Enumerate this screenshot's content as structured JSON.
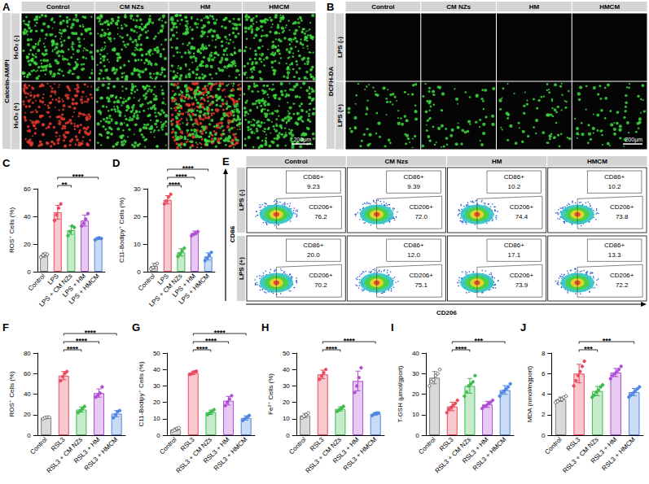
{
  "figure": {
    "A": {
      "letter": "A",
      "stain": "Calcein-AM/PI",
      "columns": [
        "Control",
        "CM NZs",
        "HM",
        "HMCM"
      ],
      "rows": [
        "H₂O₂ (-)",
        "H₂O₂ (+)"
      ],
      "scale_bar": "200μm",
      "tiles": [
        [
          [
            "#3ddc3d"
          ],
          [
            "#3ddc3d"
          ],
          [
            "#3ddc3d"
          ],
          [
            "#3ddc3d"
          ]
        ],
        [
          [
            "#e8392e"
          ],
          [
            "#3ddc3d"
          ],
          [
            "#e8392e",
            "#3ddc3d"
          ],
          [
            "#3ddc3d"
          ]
        ]
      ]
    },
    "B": {
      "letter": "B",
      "stain": "DCFH-DA",
      "columns": [
        "Control",
        "CM NZs",
        "HM",
        "HMCM"
      ],
      "rows": [
        "LPS (-)",
        "LPS (+)"
      ],
      "scale_bar": "200μm",
      "tiles": [
        [
          [],
          [],
          [],
          []
        ],
        [
          [
            "#3ddc3d"
          ],
          [
            "#3ddc3d"
          ],
          [
            "#3ddc3d"
          ],
          [
            "#3ddc3d"
          ]
        ]
      ]
    },
    "E": {
      "letter": "E",
      "x_label": "CD206",
      "y_label": "CD86",
      "columns": [
        "Control",
        "CM Nzs",
        "HM",
        "HMCM"
      ],
      "rows": [
        "LPS (-)",
        "LPS (+)"
      ],
      "gate_names": [
        "CD86+",
        "CD206+"
      ],
      "gate_values": [
        [
          [
            "9.23",
            "76.2"
          ],
          [
            "9.39",
            "72.0"
          ],
          [
            "10.2",
            "74.4"
          ],
          [
            "10.2",
            "73.8"
          ]
        ],
        [
          [
            "20.0",
            "70.2"
          ],
          [
            "12.0",
            "75.1"
          ],
          [
            "17.1",
            "73.9"
          ],
          [
            "13.3",
            "72.2"
          ]
        ]
      ]
    }
  },
  "chart_data": [
    {
      "panel": "C",
      "type": "bar",
      "y_label": "ROS⁺ Cells (%)",
      "categories": [
        "Control",
        "LPS",
        "LPS + CM NZs",
        "LPS + HM",
        "LPS + HMCM"
      ],
      "values": [
        12,
        43,
        30,
        37,
        24
      ],
      "errors": [
        1.5,
        5,
        3,
        4,
        0.8
      ],
      "points": [
        [
          10.5,
          12,
          13,
          12.5
        ],
        [
          37,
          41,
          46,
          49
        ],
        [
          26,
          29,
          33,
          32
        ],
        [
          33,
          35,
          38,
          42
        ],
        [
          23,
          24,
          24.5,
          24
        ]
      ],
      "colors": [
        "#7f7f7f",
        "#e84a5f",
        "#3dbb4d",
        "#b04fd3",
        "#4f86e0"
      ],
      "ylim": [
        0,
        60
      ],
      "yticks": [
        0,
        20,
        40,
        60
      ],
      "significance": [
        {
          "from": 1,
          "to": 2,
          "label": "**"
        },
        {
          "from": 1,
          "to": 4,
          "label": "****"
        }
      ]
    },
    {
      "panel": "D",
      "type": "bar",
      "y_label": "C11-Bodipy⁺ Cells (%)",
      "categories": [
        "Control",
        "LPS",
        "LPS + CM NZs",
        "LPS + HM",
        "LPS + HMCM"
      ],
      "values": [
        2,
        26,
        7,
        14,
        5.5
      ],
      "errors": [
        1,
        1.5,
        1.3,
        0.7,
        1.3
      ],
      "points": [
        [
          1,
          1.5,
          2.5,
          3
        ],
        [
          24.5,
          25.5,
          27,
          28
        ],
        [
          5.5,
          6.5,
          7.5,
          8.5
        ],
        [
          13,
          13.5,
          14,
          14.5
        ],
        [
          4,
          5,
          6,
          7
        ]
      ],
      "colors": [
        "#7f7f7f",
        "#e84a5f",
        "#3dbb4d",
        "#b04fd3",
        "#4f86e0"
      ],
      "ylim": [
        0,
        30
      ],
      "yticks": [
        0,
        10,
        20,
        30
      ],
      "significance": [
        {
          "from": 1,
          "to": 2,
          "label": "****"
        },
        {
          "from": 1,
          "to": 3,
          "label": "****"
        },
        {
          "from": 1,
          "to": 4,
          "label": "****"
        }
      ]
    },
    {
      "panel": "F",
      "type": "bar",
      "y_label": "ROS⁺ Cells (%)",
      "categories": [
        "Control",
        "RSL3",
        "RSL3 + CM NZs",
        "RSL3 + HM",
        "RSL3 + HMCM"
      ],
      "values": [
        17,
        58,
        25,
        41,
        21
      ],
      "errors": [
        0.8,
        4,
        2.5,
        4,
        3
      ],
      "points": [
        [
          16,
          17,
          17.5,
          17.5
        ],
        [
          53,
          57,
          60,
          62
        ],
        [
          22,
          24,
          26,
          28
        ],
        [
          37,
          39,
          41,
          47
        ],
        [
          17,
          20,
          23,
          24
        ]
      ],
      "colors": [
        "#7f7f7f",
        "#e84a5f",
        "#3dbb4d",
        "#b04fd3",
        "#4f86e0"
      ],
      "ylim": [
        0,
        80
      ],
      "yticks": [
        0,
        20,
        40,
        60,
        80
      ],
      "significance": [
        {
          "from": 1,
          "to": 2,
          "label": "****"
        },
        {
          "from": 1,
          "to": 3,
          "label": "****"
        },
        {
          "from": 1,
          "to": 4,
          "label": "****"
        }
      ]
    },
    {
      "panel": "G",
      "type": "bar",
      "y_label": "C11-Bodipy⁺ Cells (%)",
      "categories": [
        "Control",
        "RSL3",
        "RSL3 + CM NZs",
        "RSL3 + HM",
        "RSL3 + HMCM"
      ],
      "values": [
        3.5,
        38,
        14,
        21,
        10.5
      ],
      "errors": [
        0.9,
        1,
        1.3,
        2.6,
        1.3
      ],
      "points": [
        [
          2.5,
          3,
          4,
          4.5
        ],
        [
          37,
          37.5,
          38.5,
          39
        ],
        [
          12.5,
          13.5,
          14.5,
          15.5
        ],
        [
          18,
          20,
          22,
          24
        ],
        [
          9,
          10,
          11,
          12
        ]
      ],
      "colors": [
        "#7f7f7f",
        "#e84a5f",
        "#3dbb4d",
        "#b04fd3",
        "#4f86e0"
      ],
      "ylim": [
        0,
        50
      ],
      "yticks": [
        0,
        10,
        20,
        30,
        40,
        50
      ],
      "significance": [
        {
          "from": 1,
          "to": 2,
          "label": "****"
        },
        {
          "from": 1,
          "to": 3,
          "label": "****"
        },
        {
          "from": 1,
          "to": 4,
          "label": "****"
        }
      ]
    },
    {
      "panel": "H",
      "type": "bar",
      "y_label": "Fe²⁺ Cells (%)",
      "categories": [
        "Control",
        "RSL3",
        "RSL3 + CM NZs",
        "RSL3 + HM",
        "RSL3 + HMCM"
      ],
      "values": [
        12,
        37,
        16,
        33,
        13
      ],
      "errors": [
        1.3,
        2.6,
        1.3,
        6,
        0.8
      ],
      "points": [
        [
          10.5,
          11.5,
          12.5,
          13.5
        ],
        [
          34,
          36,
          38,
          40
        ],
        [
          14.5,
          15.5,
          16.5,
          17.5
        ],
        [
          26,
          30,
          35,
          41
        ],
        [
          12,
          13,
          13.5,
          13.5
        ]
      ],
      "colors": [
        "#7f7f7f",
        "#e84a5f",
        "#3dbb4d",
        "#b04fd3",
        "#4f86e0"
      ],
      "ylim": [
        0,
        50
      ],
      "yticks": [
        0,
        10,
        20,
        30,
        40,
        50
      ],
      "significance": [
        {
          "from": 1,
          "to": 2,
          "label": "****"
        },
        {
          "from": 1,
          "to": 4,
          "label": "****"
        }
      ]
    },
    {
      "panel": "I",
      "type": "bar",
      "y_label": "T-GSH (μmol/gport)",
      "categories": [
        "Control",
        "RSL3",
        "RSL3 + CM NZs",
        "RSL3 + HM",
        "RSL3 + HMCM"
      ],
      "values": [
        28,
        14,
        24,
        15,
        22
      ],
      "errors": [
        3,
        2.1,
        3.6,
        1.5,
        2.1
      ],
      "points": [
        [
          24,
          26,
          27,
          29,
          30,
          32
        ],
        [
          11,
          12.5,
          13.5,
          14.5,
          15.5,
          17
        ],
        [
          19,
          21,
          24,
          25,
          26,
          29
        ],
        [
          13,
          14,
          14.5,
          15.5,
          16,
          17
        ],
        [
          19,
          20.5,
          21.5,
          22.5,
          23.5,
          25
        ]
      ],
      "colors": [
        "#7f7f7f",
        "#e84a5f",
        "#3dbb4d",
        "#b04fd3",
        "#4f86e0"
      ],
      "ylim": [
        0,
        40
      ],
      "yticks": [
        0,
        10,
        20,
        30,
        40
      ],
      "significance": [
        {
          "from": 1,
          "to": 2,
          "label": "****"
        },
        {
          "from": 1,
          "to": 4,
          "label": "***"
        }
      ]
    },
    {
      "panel": "J",
      "type": "bar",
      "y_label": "MDA (nmol/mgport)",
      "categories": [
        "Control",
        "RSL3",
        "RSL3 + CM NZs",
        "RSL3 + HM",
        "RSL3 + HMCM"
      ],
      "values": [
        3.5,
        6,
        4.3,
        6.1,
        4.2
      ],
      "errors": [
        0.22,
        0.9,
        0.45,
        0.4,
        0.35
      ],
      "points": [
        [
          3.2,
          3.3,
          3.5,
          3.5,
          3.7,
          3.8
        ],
        [
          4.8,
          5.3,
          5.8,
          6.2,
          6.7,
          7.2
        ],
        [
          3.7,
          3.9,
          4.2,
          4.4,
          4.7,
          4.9
        ],
        [
          5.5,
          5.8,
          6.0,
          6.2,
          6.4,
          6.7
        ],
        [
          3.7,
          3.9,
          4.1,
          4.3,
          4.5,
          4.7
        ]
      ],
      "colors": [
        "#7f7f7f",
        "#e84a5f",
        "#3dbb4d",
        "#b04fd3",
        "#4f86e0"
      ],
      "ylim": [
        0,
        8
      ],
      "yticks": [
        0,
        2,
        4,
        6,
        8
      ],
      "significance": [
        {
          "from": 1,
          "to": 2,
          "label": "***"
        },
        {
          "from": 1,
          "to": 4,
          "label": "***"
        }
      ]
    }
  ]
}
